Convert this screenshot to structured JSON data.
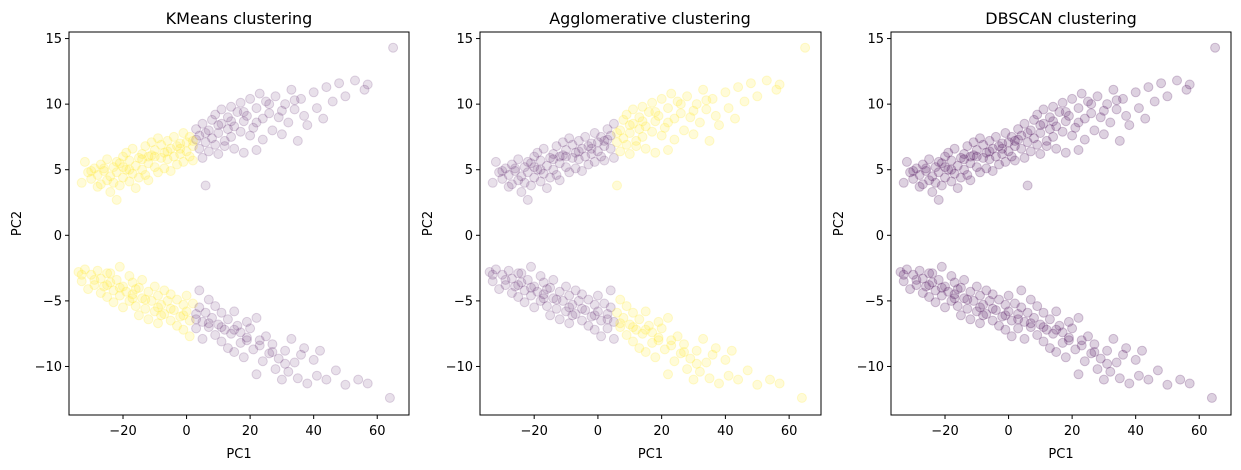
{
  "chart_data": [
    {
      "type": "scatter",
      "title": "KMeans clustering",
      "xlabel": "PC1",
      "ylabel": "PC2",
      "xlim": [
        -37,
        70
      ],
      "ylim": [
        -13.7,
        15.5
      ],
      "xticks": [
        -20,
        0,
        20,
        40,
        60
      ],
      "yticks": [
        -10,
        -5,
        0,
        5,
        10,
        15
      ],
      "xtick_labels": [
        "−20",
        "0",
        "20",
        "40",
        "60"
      ],
      "ytick_labels": [
        "−10",
        "−5",
        "0",
        "5",
        "10",
        "15"
      ],
      "grid": false,
      "point_alpha": 0.12,
      "colors": {
        "cluster_0": "#440154",
        "cluster_1": "#fde725"
      },
      "split_rule": "PC1 < 3 => cluster_1 (yellow); PC1 >= 3 => cluster_0 (purple)",
      "series": [
        {
          "label": "cluster_1",
          "color": "#fde725",
          "regions": "PC1 from -34 to 2 in both bands"
        },
        {
          "label": "cluster_0",
          "color": "#440154",
          "regions": "PC1 from 2 to 65 in both bands"
        }
      ]
    },
    {
      "type": "scatter",
      "title": "Agglomerative clustering",
      "xlabel": "PC1",
      "ylabel": "PC2",
      "xlim": [
        -37,
        70
      ],
      "ylim": [
        -13.7,
        15.5
      ],
      "xticks": [
        -20,
        0,
        20,
        40,
        60
      ],
      "yticks": [
        -10,
        -5,
        0,
        5,
        10,
        15
      ],
      "xtick_labels": [
        "−20",
        "0",
        "20",
        "40",
        "60"
      ],
      "ytick_labels": [
        "−10",
        "−5",
        "0",
        "5",
        "10",
        "15"
      ],
      "grid": false,
      "point_alpha": 0.12,
      "colors": {
        "cluster_0": "#440154",
        "cluster_1": "#fde725"
      },
      "split_rule": "PC1 < 6 => cluster_0 (purple); PC1 >= 6 => cluster_1 (yellow)",
      "series": [
        {
          "label": "cluster_0",
          "color": "#440154",
          "regions": "PC1 from -34 to 6 in both bands"
        },
        {
          "label": "cluster_1",
          "color": "#fde725",
          "regions": "PC1 from 6 to 65 in both bands"
        }
      ]
    },
    {
      "type": "scatter",
      "title": "DBSCAN clustering",
      "xlabel": "PC1",
      "ylabel": "PC2",
      "xlim": [
        -37,
        70
      ],
      "ylim": [
        -13.7,
        15.5
      ],
      "xticks": [
        -20,
        0,
        20,
        40,
        60
      ],
      "yticks": [
        -10,
        -5,
        0,
        5,
        10,
        15
      ],
      "xtick_labels": [
        "−20",
        "0",
        "20",
        "40",
        "60"
      ],
      "ytick_labels": [
        "−10",
        "−5",
        "0",
        "5",
        "10",
        "15"
      ],
      "grid": false,
      "point_alpha": 0.12,
      "colors": {
        "cluster_0": "#440154"
      },
      "split_rule": "all points => cluster_0 (purple)",
      "series": [
        {
          "label": "cluster_0",
          "color": "#440154",
          "regions": "all points"
        }
      ]
    }
  ],
  "points": {
    "upper_band": [
      [
        -33,
        4.0
      ],
      [
        -32,
        5.6
      ],
      [
        -31,
        4.8
      ],
      [
        -30,
        4.3
      ],
      [
        -29,
        5.1
      ],
      [
        -28,
        4.6
      ],
      [
        -27,
        5.4
      ],
      [
        -27,
        3.9
      ],
      [
        -26,
        4.9
      ],
      [
        -25,
        4.2
      ],
      [
        -25,
        5.8
      ],
      [
        -24,
        4.5
      ],
      [
        -24,
        3.3
      ],
      [
        -23,
        5.2
      ],
      [
        -23,
        4.0
      ],
      [
        -22,
        4.8
      ],
      [
        -22,
        2.7
      ],
      [
        -21,
        5.5
      ],
      [
        -21,
        3.8
      ],
      [
        -20,
        6.0
      ],
      [
        -20,
        4.4
      ],
      [
        -19,
        5.0
      ],
      [
        -19,
        6.3
      ],
      [
        -18,
        4.1
      ],
      [
        -18,
        5.7
      ],
      [
        -17,
        4.7
      ],
      [
        -17,
        6.6
      ],
      [
        -16,
        5.3
      ],
      [
        -16,
        3.6
      ],
      [
        -15,
        5.9
      ],
      [
        -15,
        4.4
      ],
      [
        -14,
        6.2
      ],
      [
        -14,
        5.0
      ],
      [
        -13,
        4.6
      ],
      [
        -13,
        6.8
      ],
      [
        -12,
        5.5
      ],
      [
        -12,
        4.2
      ],
      [
        -11,
        6.1
      ],
      [
        -11,
        7.1
      ],
      [
        -10,
        5.2
      ],
      [
        -10,
        6.5
      ],
      [
        -9,
        4.8
      ],
      [
        -9,
        7.4
      ],
      [
        -8,
        5.9
      ],
      [
        -8,
        6.9
      ],
      [
        -7,
        6.3
      ],
      [
        -7,
        5.1
      ],
      [
        -6,
        7.2
      ],
      [
        -6,
        5.8
      ],
      [
        -5,
        6.6
      ],
      [
        -5,
        4.9
      ],
      [
        -4,
        7.5
      ],
      [
        -4,
        6.0
      ],
      [
        -3,
        6.8
      ],
      [
        -3,
        5.4
      ],
      [
        -2,
        7.0
      ],
      [
        -2,
        6.2
      ],
      [
        -1,
        5.6
      ],
      [
        -1,
        7.8
      ],
      [
        0,
        6.4
      ],
      [
        0,
        7.1
      ],
      [
        1,
        6.0
      ],
      [
        1,
        7.5
      ],
      [
        2,
        5.7
      ],
      [
        2,
        6.8
      ],
      [
        3,
        7.3
      ],
      [
        3,
        8.1
      ],
      [
        4,
        6.6
      ],
      [
        4,
        7.6
      ],
      [
        5,
        5.9
      ],
      [
        5,
        8.5
      ],
      [
        6,
        3.8
      ],
      [
        6,
        7.1
      ],
      [
        7,
        8.0
      ],
      [
        7,
        6.4
      ],
      [
        8,
        8.8
      ],
      [
        8,
        7.4
      ],
      [
        9,
        6.9
      ],
      [
        9,
        9.2
      ],
      [
        10,
        7.8
      ],
      [
        10,
        6.2
      ],
      [
        11,
        8.5
      ],
      [
        11,
        9.6
      ],
      [
        12,
        7.2
      ],
      [
        12,
        6.8
      ],
      [
        13,
        9.0
      ],
      [
        13,
        8.1
      ],
      [
        14,
        9.8
      ],
      [
        14,
        7.5
      ],
      [
        15,
        8.3
      ],
      [
        15,
        6.6
      ],
      [
        16,
        9.4
      ],
      [
        17,
        7.9
      ],
      [
        17,
        10.1
      ],
      [
        18,
        8.7
      ],
      [
        18,
        6.3
      ],
      [
        19,
        9.1
      ],
      [
        20,
        7.6
      ],
      [
        20,
        10.4
      ],
      [
        21,
        8.2
      ],
      [
        22,
        9.7
      ],
      [
        22,
        6.5
      ],
      [
        23,
        10.8
      ],
      [
        24,
        8.9
      ],
      [
        24,
        7.3
      ],
      [
        25,
        10.2
      ],
      [
        26,
        9.3
      ],
      [
        27,
        8.0
      ],
      [
        28,
        10.6
      ],
      [
        29,
        9.0
      ],
      [
        30,
        7.7
      ],
      [
        31,
        10.0
      ],
      [
        32,
        8.6
      ],
      [
        33,
        11.1
      ],
      [
        34,
        9.6
      ],
      [
        35,
        7.2
      ],
      [
        36,
        10.4
      ],
      [
        37,
        9.1
      ],
      [
        38,
        8.4
      ],
      [
        40,
        10.9
      ],
      [
        41,
        9.7
      ],
      [
        43,
        8.9
      ],
      [
        44,
        11.3
      ],
      [
        46,
        10.2
      ],
      [
        48,
        11.6
      ],
      [
        50,
        10.6
      ],
      [
        53,
        11.8
      ],
      [
        56,
        11.1
      ],
      [
        57,
        11.5
      ],
      [
        65,
        14.3
      ],
      [
        -30,
        4.9
      ],
      [
        -26,
        5.1
      ],
      [
        -22,
        5.6
      ],
      [
        -18,
        5.0
      ],
      [
        -14,
        5.8
      ],
      [
        -10,
        6.0
      ],
      [
        -6,
        6.4
      ],
      [
        -2,
        6.6
      ],
      [
        2,
        7.2
      ],
      [
        6,
        7.8
      ],
      [
        10,
        8.4
      ],
      [
        14,
        8.7
      ],
      [
        18,
        9.4
      ],
      [
        22,
        8.6
      ],
      [
        26,
        10.0
      ],
      [
        30,
        9.5
      ],
      [
        34,
        10.3
      ],
      [
        -28,
        3.7
      ],
      [
        -20,
        5.2
      ],
      [
        -12,
        6.0
      ]
    ],
    "lower_band": [
      [
        -34,
        -2.8
      ],
      [
        -33,
        -3.5
      ],
      [
        -32,
        -2.6
      ],
      [
        -31,
        -4.1
      ],
      [
        -30,
        -3.0
      ],
      [
        -29,
        -3.8
      ],
      [
        -28,
        -2.7
      ],
      [
        -27,
        -4.4
      ],
      [
        -27,
        -3.3
      ],
      [
        -26,
        -3.9
      ],
      [
        -25,
        -4.7
      ],
      [
        -25,
        -2.9
      ],
      [
        -24,
        -3.6
      ],
      [
        -23,
        -4.2
      ],
      [
        -23,
        -5.1
      ],
      [
        -22,
        -3.4
      ],
      [
        -21,
        -4.6
      ],
      [
        -21,
        -2.4
      ],
      [
        -20,
        -3.9
      ],
      [
        -20,
        -5.5
      ],
      [
        -19,
        -4.3
      ],
      [
        -18,
        -3.1
      ],
      [
        -18,
        -5.0
      ],
      [
        -17,
        -4.5
      ],
      [
        -17,
        -3.6
      ],
      [
        -16,
        -5.4
      ],
      [
        -15,
        -4.0
      ],
      [
        -15,
        -6.1
      ],
      [
        -14,
        -4.8
      ],
      [
        -14,
        -3.4
      ],
      [
        -13,
        -5.6
      ],
      [
        -12,
        -4.3
      ],
      [
        -12,
        -6.4
      ],
      [
        -11,
        -5.0
      ],
      [
        -10,
        -3.9
      ],
      [
        -10,
        -5.8
      ],
      [
        -9,
        -4.6
      ],
      [
        -9,
        -6.7
      ],
      [
        -8,
        -5.3
      ],
      [
        -7,
        -4.2
      ],
      [
        -7,
        -6.0
      ],
      [
        -6,
        -5.0
      ],
      [
        -5,
        -6.5
      ],
      [
        -5,
        -4.5
      ],
      [
        -4,
        -5.7
      ],
      [
        -3,
        -6.9
      ],
      [
        -3,
        -4.9
      ],
      [
        -2,
        -6.2
      ],
      [
        -1,
        -5.3
      ],
      [
        -1,
        -7.2
      ],
      [
        0,
        -5.8
      ],
      [
        0,
        -4.6
      ],
      [
        1,
        -6.5
      ],
      [
        1,
        -7.7
      ],
      [
        2,
        -5.2
      ],
      [
        3,
        -6.0
      ],
      [
        3,
        -7.1
      ],
      [
        4,
        -5.5
      ],
      [
        4,
        -4.2
      ],
      [
        5,
        -6.6
      ],
      [
        5,
        -7.9
      ],
      [
        6,
        -5.9
      ],
      [
        7,
        -7.0
      ],
      [
        7,
        -4.9
      ],
      [
        8,
        -6.3
      ],
      [
        9,
        -7.6
      ],
      [
        9,
        -5.4
      ],
      [
        10,
        -6.8
      ],
      [
        11,
        -8.1
      ],
      [
        11,
        -5.9
      ],
      [
        12,
        -7.2
      ],
      [
        13,
        -6.4
      ],
      [
        13,
        -8.6
      ],
      [
        14,
        -7.5
      ],
      [
        15,
        -5.8
      ],
      [
        15,
        -8.9
      ],
      [
        16,
        -6.9
      ],
      [
        17,
        -8.2
      ],
      [
        17,
        -7.4
      ],
      [
        18,
        -9.3
      ],
      [
        19,
        -6.6
      ],
      [
        19,
        -8.0
      ],
      [
        20,
        -7.1
      ],
      [
        21,
        -8.7
      ],
      [
        22,
        -10.6
      ],
      [
        22,
        -6.3
      ],
      [
        23,
        -8.4
      ],
      [
        24,
        -9.6
      ],
      [
        25,
        -7.7
      ],
      [
        26,
        -9.0
      ],
      [
        27,
        -8.3
      ],
      [
        28,
        -10.2
      ],
      [
        29,
        -9.4
      ],
      [
        30,
        -11.0
      ],
      [
        31,
        -8.8
      ],
      [
        32,
        -10.4
      ],
      [
        33,
        -7.9
      ],
      [
        34,
        -9.7
      ],
      [
        35,
        -10.9
      ],
      [
        36,
        -9.1
      ],
      [
        37,
        -8.6
      ],
      [
        38,
        -11.3
      ],
      [
        40,
        -9.5
      ],
      [
        41,
        -10.7
      ],
      [
        42,
        -8.8
      ],
      [
        44,
        -11.0
      ],
      [
        47,
        -10.3
      ],
      [
        50,
        -11.4
      ],
      [
        54,
        -11.0
      ],
      [
        57,
        -11.3
      ],
      [
        64,
        -12.4
      ],
      [
        -33,
        -3.0
      ],
      [
        -29,
        -3.4
      ],
      [
        -25,
        -3.8
      ],
      [
        -21,
        -4.0
      ],
      [
        -17,
        -4.8
      ],
      [
        -13,
        -4.9
      ],
      [
        -9,
        -5.5
      ],
      [
        -5,
        -5.6
      ],
      [
        -1,
        -6.1
      ],
      [
        3,
        -6.4
      ],
      [
        7,
        -6.7
      ],
      [
        11,
        -7.0
      ],
      [
        15,
        -7.2
      ],
      [
        19,
        -7.8
      ],
      [
        23,
        -8.0
      ],
      [
        27,
        -8.9
      ],
      [
        31,
        -9.8
      ],
      [
        -24,
        -2.9
      ],
      [
        -16,
        -4.1
      ],
      [
        -8,
        -6.1
      ]
    ]
  }
}
